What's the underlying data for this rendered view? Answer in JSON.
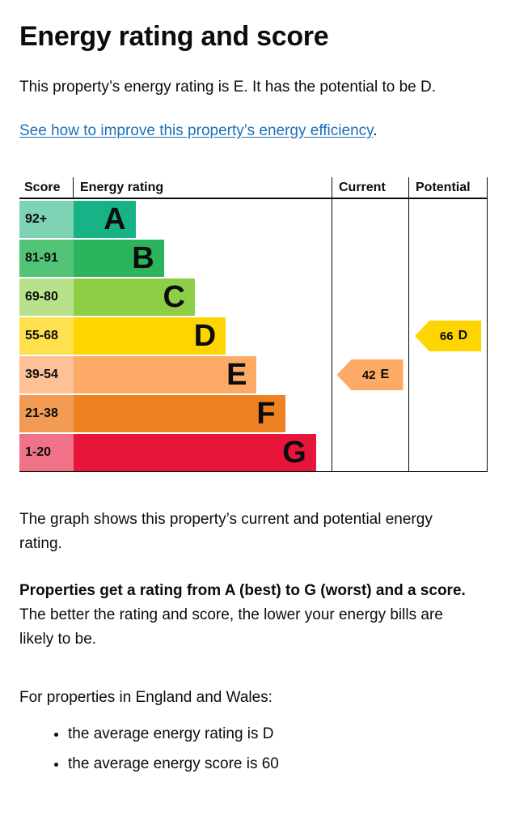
{
  "page": {
    "title": "Energy rating and score",
    "intro": "This property’s energy rating is E. It has the potential to be D.",
    "improve_link_text": "See how to improve this property’s energy efficiency",
    "improve_link_suffix": ".",
    "graph_caption": "The graph shows this property’s current and potential energy rating.",
    "rating_explainer_bold": "Properties get a rating from A (best) to G (worst) and a score.",
    "rating_explainer_rest": "The better the rating and score, the lower your energy bills are likely to be.",
    "england_wales_intro": "For properties in England and Wales:",
    "bullet_items": [
      "the average energy rating is D",
      "the average energy score is 60"
    ]
  },
  "chart_data": {
    "type": "bar",
    "title": "Energy rating and score",
    "headers": {
      "score": "Score",
      "rating": "Energy rating",
      "current": "Current",
      "potential": "Potential"
    },
    "categories": [
      "A",
      "B",
      "C",
      "D",
      "E",
      "F",
      "G"
    ],
    "score_ranges": [
      "92+",
      "81-91",
      "69-80",
      "55-68",
      "39-54",
      "21-38",
      "1-20"
    ],
    "bar_lengths_pct": [
      24,
      35,
      47,
      59,
      71,
      82,
      94
    ],
    "bands": [
      {
        "range": "92+",
        "letter": "A",
        "bar_color": "#17b285",
        "score_color": "#7ed3b4"
      },
      {
        "range": "81-91",
        "letter": "B",
        "bar_color": "#2bb45c",
        "score_color": "#53c377"
      },
      {
        "range": "69-80",
        "letter": "C",
        "bar_color": "#8dce46",
        "score_color": "#b8e18c"
      },
      {
        "range": "55-68",
        "letter": "D",
        "bar_color": "#ffd500",
        "score_color": "#ffe04d"
      },
      {
        "range": "39-54",
        "letter": "E",
        "bar_color": "#fcaa65",
        "score_color": "#fcc195"
      },
      {
        "range": "21-38",
        "letter": "F",
        "bar_color": "#ee8122",
        "score_color": "#f29b54"
      },
      {
        "range": "1-20",
        "letter": "G",
        "bar_color": "#e8153a",
        "score_color": "#ef7286"
      }
    ],
    "current": {
      "value": "42",
      "letter": "E",
      "color": "#fcaa65"
    },
    "potential": {
      "value": "66",
      "letter": "D",
      "color": "#ffd500"
    }
  },
  "colors": {
    "text": "#0b0c0c",
    "link": "#1d70b8",
    "border": "#0b0c0c"
  }
}
